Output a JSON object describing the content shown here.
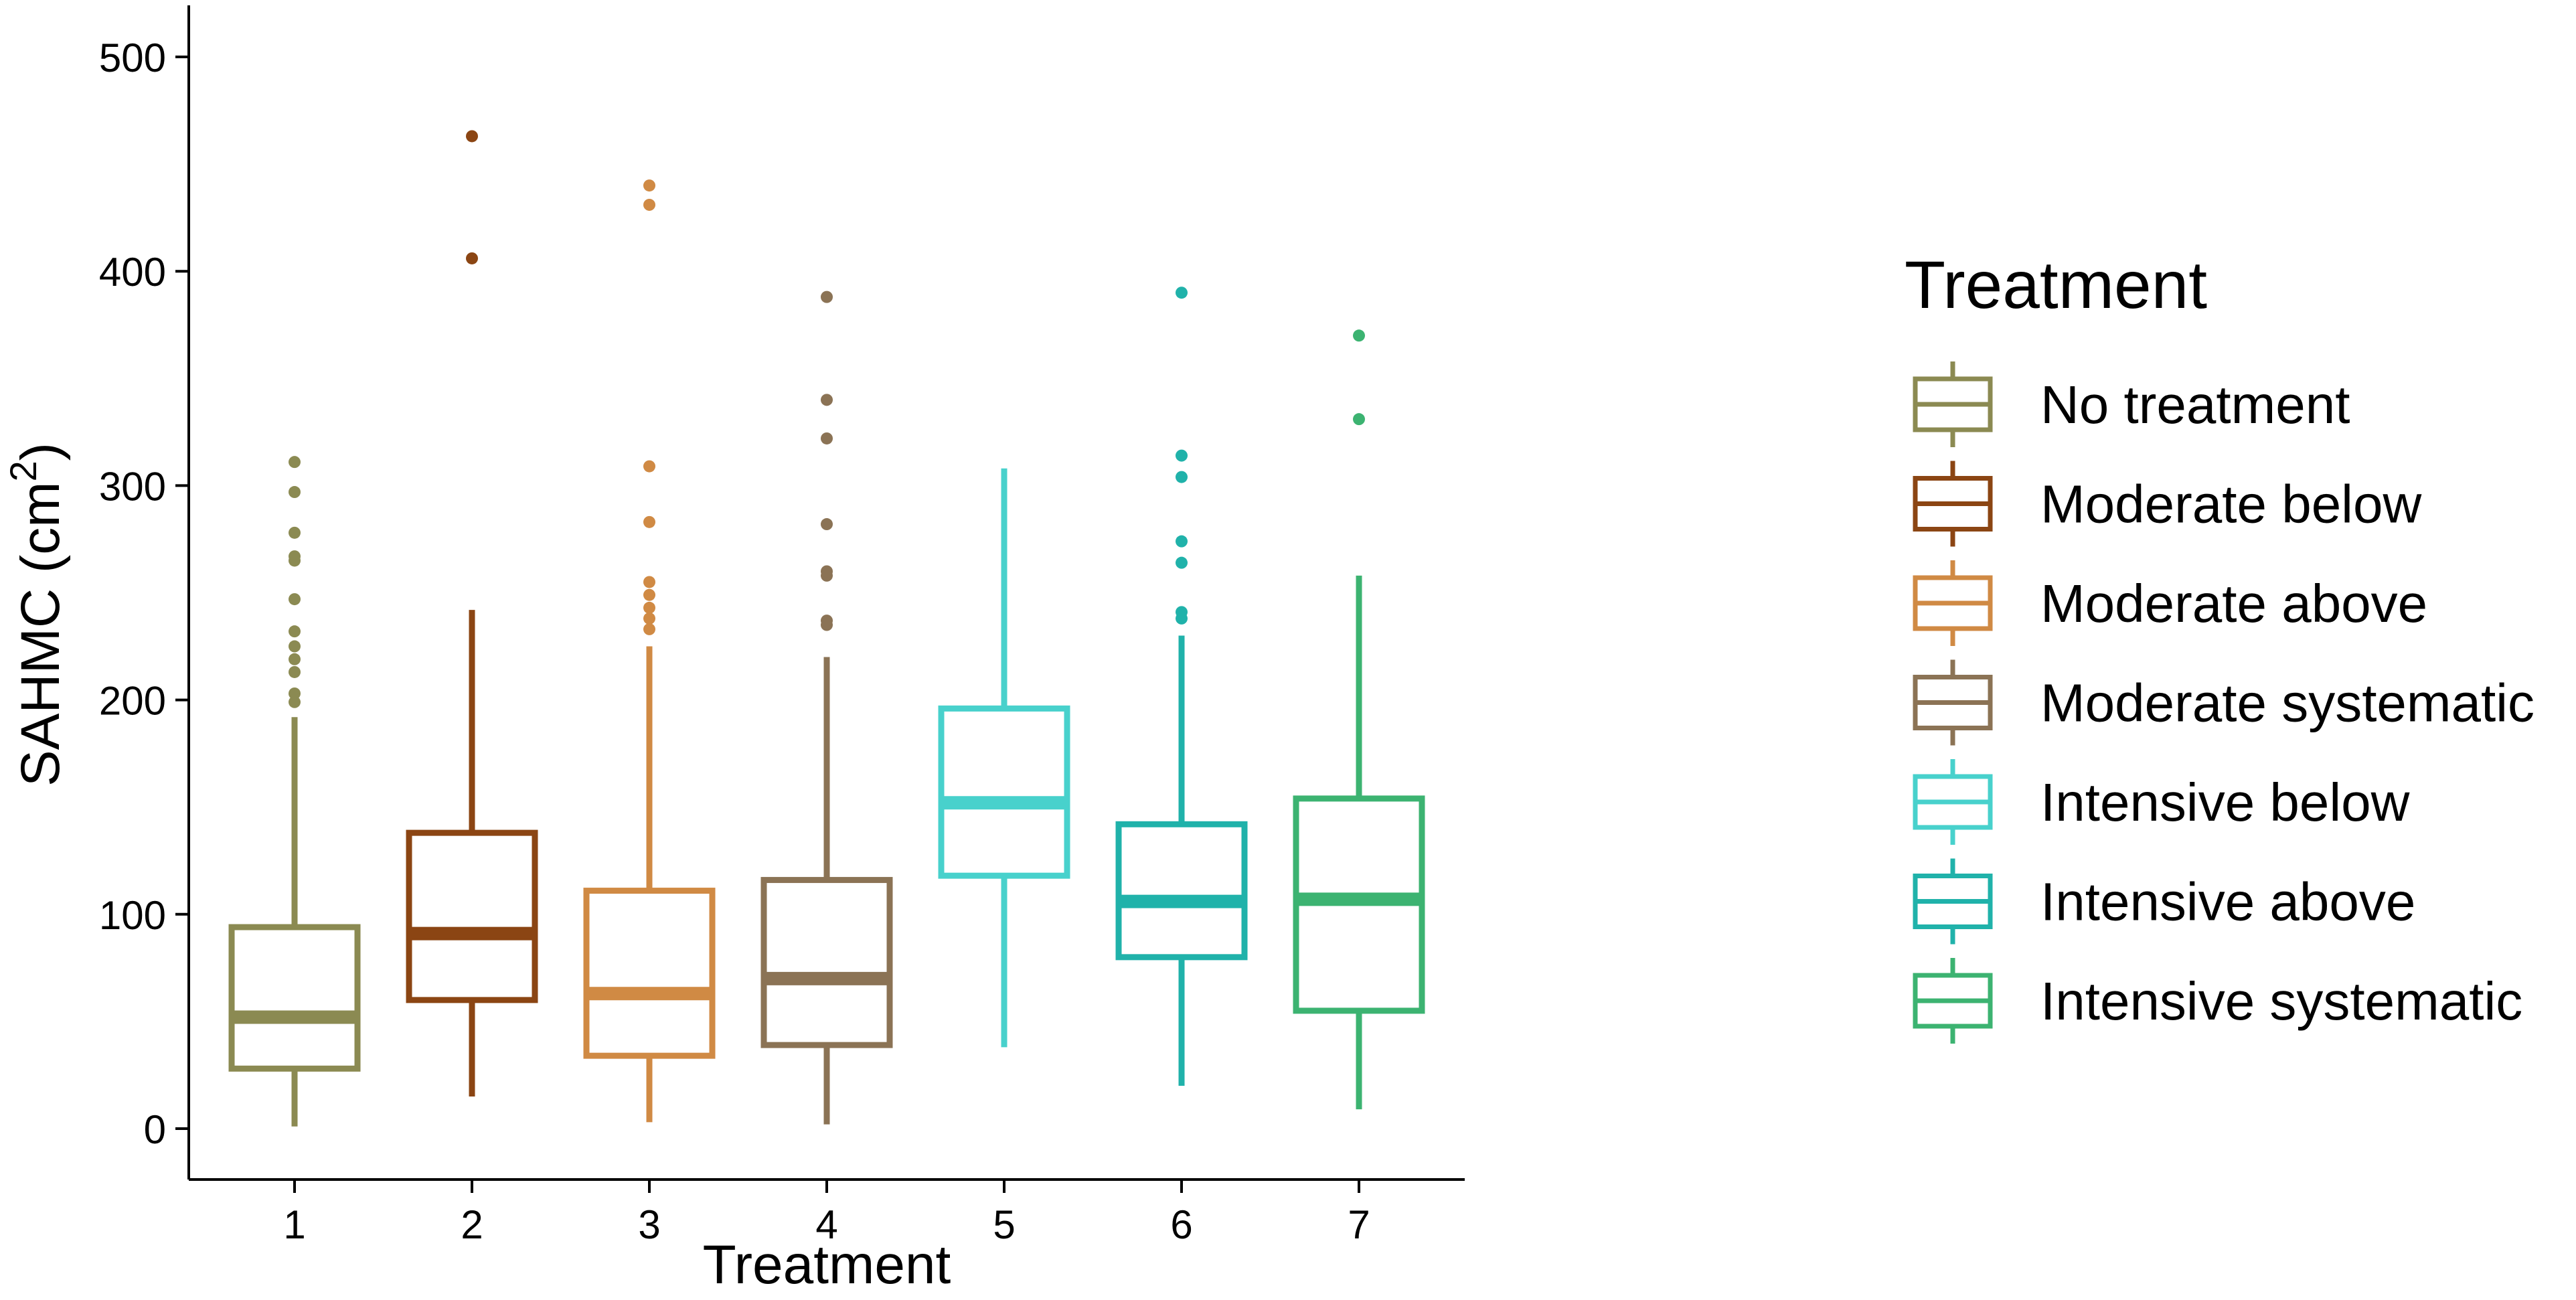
{
  "chart_data": {
    "type": "boxplot",
    "title": "",
    "xlabel": "Treatment",
    "ylabel": "SAHMC (cm",
    "ylabel_superscript": "2",
    "ylabel_suffix": ")",
    "ylim": [
      -24,
      525
    ],
    "yticks": [
      0,
      100,
      200,
      300,
      400,
      500
    ],
    "ytick_labels": [
      "0",
      "100",
      "200",
      "300",
      "400",
      "500"
    ],
    "grid": false,
    "legend": {
      "title": "Treatment",
      "placement": "right"
    },
    "series": [
      {
        "category": "1",
        "name": "No treatment",
        "color": "#8b8a52",
        "min": 1,
        "q1": 28,
        "median": 52,
        "q3": 94,
        "max": 192,
        "outliers": [
          199,
          203,
          213,
          219,
          225,
          232,
          247,
          265,
          267,
          278,
          297,
          311
        ]
      },
      {
        "category": "2",
        "name": "Moderate below",
        "color": "#8b4513",
        "min": 15,
        "q1": 60,
        "median": 91,
        "q3": 138,
        "max": 242,
        "outliers": [
          406,
          463
        ]
      },
      {
        "category": "3",
        "name": "Moderate above",
        "color": "#d08a44",
        "min": 3,
        "q1": 34,
        "median": 63,
        "q3": 111,
        "max": 225,
        "outliers": [
          233,
          238,
          243,
          249,
          255,
          283,
          309,
          431,
          440
        ]
      },
      {
        "category": "4",
        "name": "Moderate systematic",
        "color": "#8b7355",
        "min": 2,
        "q1": 39,
        "median": 70,
        "q3": 116,
        "max": 220,
        "outliers": [
          235,
          237,
          258,
          260,
          282,
          322,
          340,
          388
        ]
      },
      {
        "category": "5",
        "name": "Intensive below",
        "color": "#48d1cc",
        "min": 38,
        "q1": 118,
        "median": 152,
        "q3": 196,
        "max": 308,
        "outliers": []
      },
      {
        "category": "6",
        "name": "Intensive above",
        "color": "#20b2aa",
        "min": 20,
        "q1": 80,
        "median": 106,
        "q3": 142,
        "max": 230,
        "outliers": [
          238,
          241,
          264,
          274,
          304,
          314,
          390
        ]
      },
      {
        "category": "7",
        "name": "Intensive systematic",
        "color": "#3cb371",
        "min": 9,
        "q1": 55,
        "median": 107,
        "q3": 154,
        "max": 258,
        "outliers": [
          331,
          370
        ]
      }
    ]
  }
}
